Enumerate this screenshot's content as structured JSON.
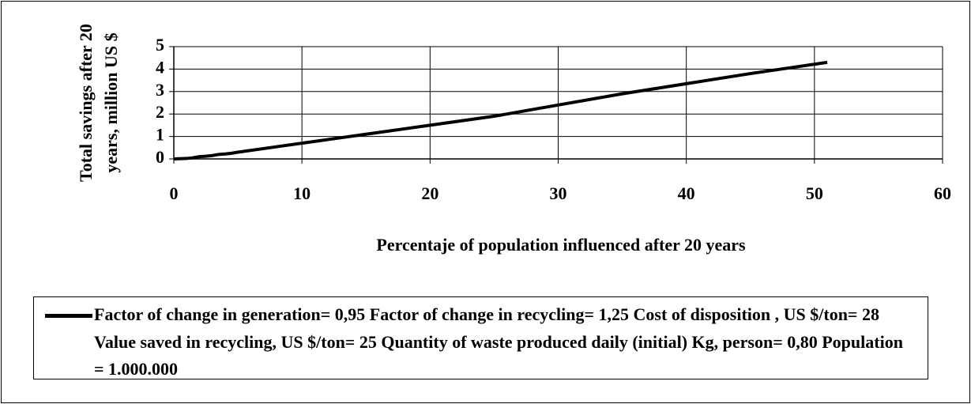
{
  "chart_data": {
    "type": "line",
    "x_label": "Percentaje of population influenced after 20 years",
    "y_label": "Total savings after 20 years, million US $",
    "x": [
      0,
      1,
      1.5,
      2,
      2.5,
      3,
      3.5,
      4,
      4.5,
      5,
      7.5,
      10,
      12.5,
      15,
      20,
      25,
      30,
      35,
      40,
      45,
      51
    ],
    "series": [
      {
        "name": "Factor of change in generation= 0,95 Factor of change in recycling= 1,25 Cost of disposition , US $/ton= 28 Value saved in recycling, US $/ton= 25 Quantity of waste produced daily (initial) Kg, person= 0,80 Population = 1.000.000",
        "color": "#000000",
        "values": [
          0,
          0.02,
          0.05,
          0.1,
          0.12,
          0.15,
          0.2,
          0.22,
          0.25,
          0.3,
          0.5,
          0.7,
          0.9,
          1.1,
          1.5,
          1.9,
          2.4,
          2.9,
          3.35,
          3.8,
          4.3
        ]
      }
    ],
    "xlim": [
      0,
      60
    ],
    "xticks": [
      0,
      10,
      20,
      30,
      40,
      50,
      60
    ],
    "ylim": [
      0,
      5
    ],
    "yticks": [
      0,
      1,
      2,
      3,
      4,
      5
    ],
    "grid": true
  }
}
